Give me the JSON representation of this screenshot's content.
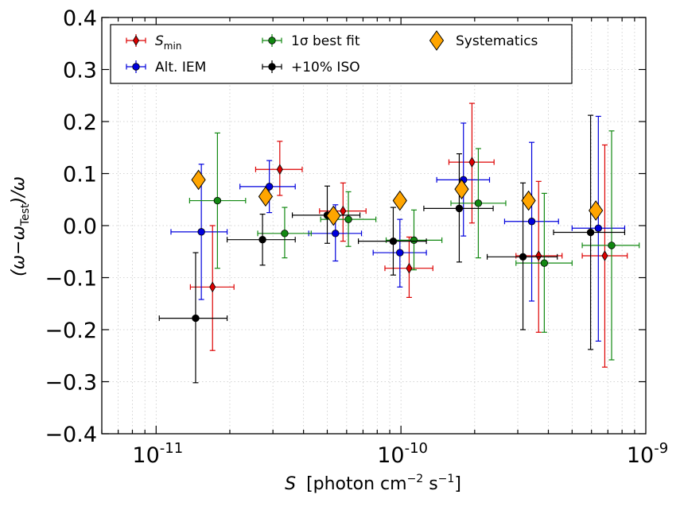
{
  "chart_data": {
    "type": "scatter",
    "x_scale": "log",
    "xlim": [
      6e-12,
      1e-09
    ],
    "ylim": [
      -0.4,
      0.4
    ],
    "grid": true,
    "xlabel": {
      "var": "S",
      "text": "[photon cm",
      "exp1": "−2",
      "mid": " s",
      "exp2": "−1",
      "end": "]"
    },
    "ylabel": {
      "main": "(ω−ω",
      "sub": "Test",
      "end": ")/ω"
    },
    "x_ticks": [
      {
        "value": 1e-11,
        "base": "10",
        "exp": "-11"
      },
      {
        "value": 1e-10,
        "base": "10",
        "exp": "-10"
      },
      {
        "value": 1e-09,
        "base": "10",
        "exp": "-9"
      }
    ],
    "y_ticks": [
      {
        "value": -0.4,
        "label": "−0.4"
      },
      {
        "value": -0.3,
        "label": "−0.3"
      },
      {
        "value": -0.2,
        "label": "−0.2"
      },
      {
        "value": -0.1,
        "label": "−0.1"
      },
      {
        "value": 0.0,
        "label": "0.0"
      },
      {
        "value": 0.1,
        "label": "0.1"
      },
      {
        "value": 0.2,
        "label": "0.2"
      },
      {
        "value": 0.3,
        "label": "0.3"
      },
      {
        "value": 0.4,
        "label": "0.4"
      }
    ],
    "legend_position": "top",
    "series": [
      {
        "name": "S_min",
        "label_main": "S",
        "label_sub": "min",
        "color": "#dd0000",
        "marker": "thin-diamond",
        "points": [
          {
            "x": 1.7e-11,
            "y": -0.118,
            "xlo": 1.38e-11,
            "xhi": 2.08e-11,
            "ylo": -0.24,
            "yhi": 0.0
          },
          {
            "x": 3.2e-11,
            "y": 0.108,
            "xlo": 2.55e-11,
            "xhi": 3.95e-11,
            "ylo": 0.058,
            "yhi": 0.162
          },
          {
            "x": 5.8e-11,
            "y": 0.028,
            "xlo": 4.65e-11,
            "xhi": 7.2e-11,
            "ylo": -0.03,
            "yhi": 0.082
          },
          {
            "x": 1.08e-10,
            "y": -0.082,
            "xlo": 8.6e-11,
            "xhi": 1.35e-10,
            "ylo": -0.138,
            "yhi": -0.022
          },
          {
            "x": 1.95e-10,
            "y": 0.122,
            "xlo": 1.57e-10,
            "xhi": 2.4e-10,
            "ylo": 0.005,
            "yhi": 0.235
          },
          {
            "x": 3.65e-10,
            "y": -0.058,
            "xlo": 2.95e-10,
            "xhi": 4.55e-10,
            "ylo": -0.205,
            "yhi": 0.085
          },
          {
            "x": 6.8e-10,
            "y": -0.058,
            "xlo": 5.5e-10,
            "xhi": 8.4e-10,
            "ylo": -0.272,
            "yhi": 0.155
          }
        ]
      },
      {
        "name": "Alt. IEM",
        "label_main": "Alt. IEM",
        "label_sub": "",
        "color": "#0000dd",
        "marker": "circle",
        "points": [
          {
            "x": 1.53e-11,
            "y": -0.012,
            "xlo": 1.15e-11,
            "xhi": 1.95e-11,
            "ylo": -0.142,
            "yhi": 0.118
          },
          {
            "x": 2.9e-11,
            "y": 0.075,
            "xlo": 2.2e-11,
            "xhi": 3.7e-11,
            "ylo": 0.025,
            "yhi": 0.125
          },
          {
            "x": 5.4e-11,
            "y": -0.015,
            "xlo": 4.2e-11,
            "xhi": 6.9e-11,
            "ylo": -0.068,
            "yhi": 0.04
          },
          {
            "x": 9.9e-11,
            "y": -0.052,
            "xlo": 7.7e-11,
            "xhi": 1.27e-10,
            "ylo": -0.118,
            "yhi": 0.012
          },
          {
            "x": 1.8e-10,
            "y": 0.088,
            "xlo": 1.4e-10,
            "xhi": 2.3e-10,
            "ylo": -0.02,
            "yhi": 0.197
          },
          {
            "x": 3.42e-10,
            "y": 0.008,
            "xlo": 2.65e-10,
            "xhi": 4.4e-10,
            "ylo": -0.145,
            "yhi": 0.16
          },
          {
            "x": 6.4e-10,
            "y": -0.005,
            "xlo": 5e-10,
            "xhi": 8.2e-10,
            "ylo": -0.222,
            "yhi": 0.21
          }
        ]
      },
      {
        "name": "1σ best fit",
        "label_main": "1σ best fit",
        "label_sub": "",
        "color": "#118811",
        "marker": "circle",
        "points": [
          {
            "x": 1.78e-11,
            "y": 0.048,
            "xlo": 1.37e-11,
            "xhi": 2.32e-11,
            "ylo": -0.082,
            "yhi": 0.178
          },
          {
            "x": 3.35e-11,
            "y": -0.015,
            "xlo": 2.6e-11,
            "xhi": 4.3e-11,
            "ylo": -0.062,
            "yhi": 0.035
          },
          {
            "x": 6.1e-11,
            "y": 0.012,
            "xlo": 4.7e-11,
            "xhi": 7.9e-11,
            "ylo": -0.04,
            "yhi": 0.065
          },
          {
            "x": 1.13e-10,
            "y": -0.028,
            "xlo": 8.7e-11,
            "xhi": 1.47e-10,
            "ylo": -0.085,
            "yhi": 0.03
          },
          {
            "x": 2.07e-10,
            "y": 0.043,
            "xlo": 1.6e-10,
            "xhi": 2.68e-10,
            "ylo": -0.062,
            "yhi": 0.148
          },
          {
            "x": 3.85e-10,
            "y": -0.072,
            "xlo": 2.95e-10,
            "xhi": 5e-10,
            "ylo": -0.205,
            "yhi": 0.062
          },
          {
            "x": 7.25e-10,
            "y": -0.038,
            "xlo": 5.5e-10,
            "xhi": 9.4e-10,
            "ylo": -0.258,
            "yhi": 0.182
          }
        ]
      },
      {
        "name": "+10% ISO",
        "label_main": "+10% ISO",
        "label_sub": "",
        "color": "#000000",
        "marker": "circle",
        "points": [
          {
            "x": 1.45e-11,
            "y": -0.178,
            "xlo": 1.03e-11,
            "xhi": 1.95e-11,
            "ylo": -0.302,
            "yhi": -0.052
          },
          {
            "x": 2.72e-11,
            "y": -0.027,
            "xlo": 1.95e-11,
            "xhi": 3.7e-11,
            "ylo": -0.076,
            "yhi": 0.022
          },
          {
            "x": 5e-11,
            "y": 0.02,
            "xlo": 3.6e-11,
            "xhi": 6.8e-11,
            "ylo": -0.034,
            "yhi": 0.076
          },
          {
            "x": 9.3e-11,
            "y": -0.03,
            "xlo": 6.7e-11,
            "xhi": 1.27e-10,
            "ylo": -0.095,
            "yhi": 0.035
          },
          {
            "x": 1.73e-10,
            "y": 0.033,
            "xlo": 1.24e-10,
            "xhi": 2.38e-10,
            "ylo": -0.07,
            "yhi": 0.138
          },
          {
            "x": 3.15e-10,
            "y": -0.06,
            "xlo": 2.25e-10,
            "xhi": 4.35e-10,
            "ylo": -0.2,
            "yhi": 0.082
          },
          {
            "x": 5.95e-10,
            "y": -0.013,
            "xlo": 4.2e-10,
            "xhi": 8.2e-10,
            "ylo": -0.238,
            "yhi": 0.212
          }
        ]
      },
      {
        "name": "Systematics",
        "label_main": "Systematics",
        "label_sub": "",
        "color": "#ffa500",
        "marker": "diamond",
        "points": [
          {
            "x": 1.49e-11,
            "y": 0.088
          },
          {
            "x": 2.8e-11,
            "y": 0.056
          },
          {
            "x": 5.3e-11,
            "y": 0.019
          },
          {
            "x": 9.9e-11,
            "y": 0.048
          },
          {
            "x": 1.77e-10,
            "y": 0.07
          },
          {
            "x": 3.32e-10,
            "y": 0.048
          },
          {
            "x": 6.25e-10,
            "y": 0.029
          }
        ]
      }
    ]
  }
}
